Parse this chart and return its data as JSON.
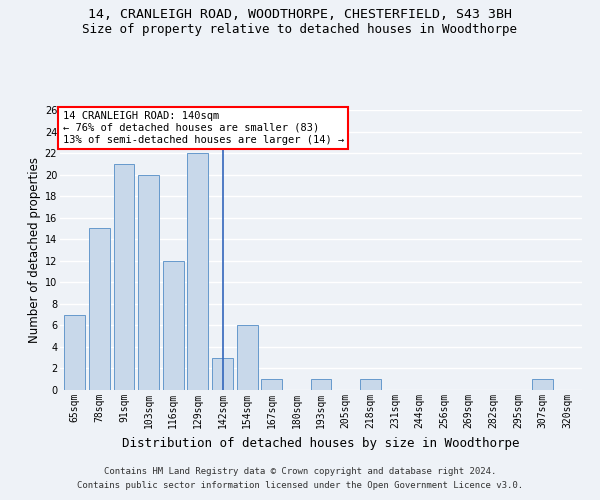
{
  "title_line1": "14, CRANLEIGH ROAD, WOODTHORPE, CHESTERFIELD, S43 3BH",
  "title_line2": "Size of property relative to detached houses in Woodthorpe",
  "xlabel": "Distribution of detached houses by size in Woodthorpe",
  "ylabel": "Number of detached properties",
  "categories": [
    "65sqm",
    "78sqm",
    "91sqm",
    "103sqm",
    "116sqm",
    "129sqm",
    "142sqm",
    "154sqm",
    "167sqm",
    "180sqm",
    "193sqm",
    "205sqm",
    "218sqm",
    "231sqm",
    "244sqm",
    "256sqm",
    "269sqm",
    "282sqm",
    "295sqm",
    "307sqm",
    "320sqm"
  ],
  "values": [
    7,
    15,
    21,
    20,
    12,
    22,
    3,
    6,
    1,
    0,
    1,
    0,
    1,
    0,
    0,
    0,
    0,
    0,
    0,
    1,
    0
  ],
  "highlight_index": 6,
  "bar_color": "#c8d8ea",
  "bar_edge_color": "#6699cc",
  "highlight_line_color": "#3366bb",
  "ylim": [
    0,
    26
  ],
  "yticks": [
    0,
    2,
    4,
    6,
    8,
    10,
    12,
    14,
    16,
    18,
    20,
    22,
    24,
    26
  ],
  "annotation_title": "14 CRANLEIGH ROAD: 140sqm",
  "annotation_line1": "← 76% of detached houses are smaller (83)",
  "annotation_line2": "13% of semi-detached houses are larger (14) →",
  "annotation_box_color": "white",
  "annotation_box_edge": "red",
  "footer_line1": "Contains HM Land Registry data © Crown copyright and database right 2024.",
  "footer_line2": "Contains public sector information licensed under the Open Government Licence v3.0.",
  "background_color": "#eef2f7",
  "grid_color": "#ffffff",
  "title_fontsize": 9.5,
  "subtitle_fontsize": 9,
  "axis_label_fontsize": 8.5,
  "tick_fontsize": 7,
  "annotation_fontsize": 7.5,
  "footer_fontsize": 6.5
}
